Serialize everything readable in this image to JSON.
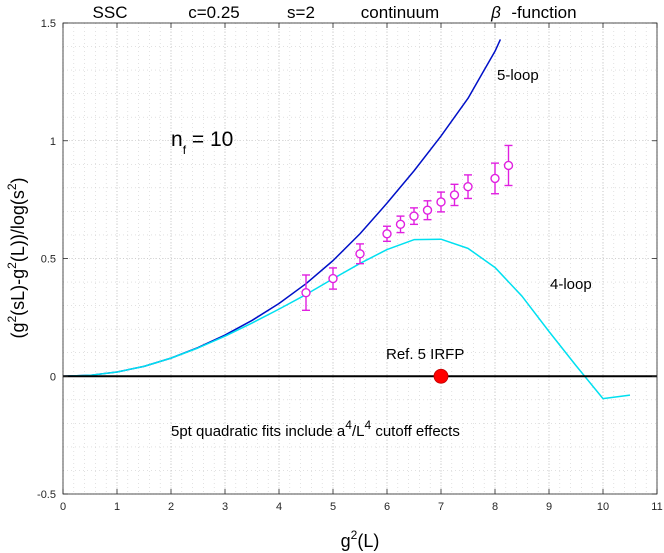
{
  "chart_data": {
    "type": "line",
    "title": {
      "part1": "SSC",
      "part2": "c=0.25",
      "part3": "s=2",
      "part4": "continuum",
      "beta": "β",
      "part5": "-function"
    },
    "xlabel": {
      "base": "g",
      "sup": "2",
      "rest": "(L)"
    },
    "ylabel": {
      "a": "(g",
      "b": "2",
      "c": "(sL)-g",
      "d": "2",
      "e": "(L))/log(s",
      "f": "2",
      "g": ")"
    },
    "xlim": [
      0,
      11
    ],
    "ylim": [
      -0.5,
      1.5
    ],
    "xticks": [
      0,
      1,
      2,
      3,
      4,
      5,
      6,
      7,
      8,
      9,
      10,
      11
    ],
    "yticks": [
      -0.5,
      0,
      0.5,
      1,
      1.5
    ],
    "xtick_labels": [
      "0",
      "1",
      "2",
      "3",
      "4",
      "5",
      "6",
      "7",
      "8",
      "9",
      "10",
      "11"
    ],
    "ytick_labels": [
      "-0.5",
      "0",
      "0.5",
      "1",
      "1.5"
    ],
    "grid": true,
    "series": [
      {
        "name": "5-loop",
        "color": "#0010c8",
        "x": [
          0,
          0.5,
          1,
          1.5,
          2,
          2.5,
          3,
          3.5,
          4,
          4.5,
          5,
          5.5,
          6,
          6.5,
          7,
          7.5,
          7.75,
          8,
          8.1
        ],
        "values": [
          0,
          0.004,
          0.018,
          0.042,
          0.077,
          0.122,
          0.175,
          0.237,
          0.309,
          0.393,
          0.491,
          0.605,
          0.735,
          0.872,
          1.02,
          1.18,
          1.28,
          1.38,
          1.43
        ]
      },
      {
        "name": "4-loop",
        "color": "#00e0f0",
        "x": [
          0,
          0.5,
          1,
          1.5,
          2,
          2.5,
          3,
          3.5,
          4,
          4.5,
          5,
          5.5,
          6,
          6.5,
          7,
          7.5,
          8,
          8.5,
          9,
          9.5,
          10,
          10.5
        ],
        "values": [
          0,
          0.004,
          0.018,
          0.042,
          0.077,
          0.12,
          0.17,
          0.226,
          0.285,
          0.347,
          0.414,
          0.479,
          0.538,
          0.58,
          0.582,
          0.543,
          0.462,
          0.34,
          0.19,
          0.045,
          -0.095,
          -0.08
        ]
      },
      {
        "name": "zero line",
        "color": "#000000",
        "x": [
          0,
          11
        ],
        "values": [
          0,
          0
        ]
      }
    ],
    "data_points": {
      "name": "nf=10 data",
      "color": "#e020e0",
      "x": [
        4.5,
        5.0,
        5.5,
        6.0,
        6.25,
        6.5,
        6.75,
        7.0,
        7.25,
        7.5,
        8.0,
        8.25
      ],
      "y": [
        0.355,
        0.415,
        0.52,
        0.605,
        0.645,
        0.68,
        0.705,
        0.74,
        0.77,
        0.805,
        0.84,
        0.895
      ],
      "err": [
        0.075,
        0.045,
        0.042,
        0.032,
        0.035,
        0.035,
        0.04,
        0.042,
        0.045,
        0.05,
        0.065,
        0.085
      ]
    },
    "irfp_point": {
      "x": 7.0,
      "y": 0.0,
      "color": "#ff0000"
    },
    "annotations": {
      "loop5": "5-loop",
      "loop4": "4-loop",
      "nf_base": "n",
      "nf_sub": "f",
      "nf_rest": " = 10",
      "ref": "Ref. 5  IRFP",
      "note_pre": "5pt quadratic fits include a",
      "note_sup1": "4",
      "note_mid": "/L",
      "note_sup2": "4",
      "note_post": " cutoff effects"
    }
  }
}
